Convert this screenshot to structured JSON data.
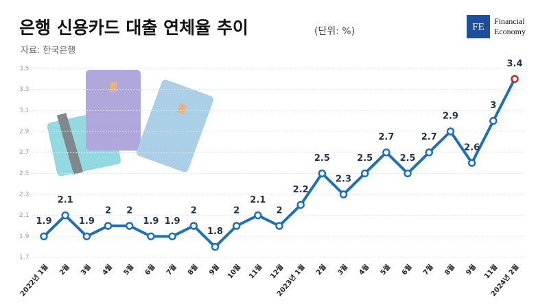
{
  "chart_data": {
    "type": "line",
    "title": "은행 신용카드 대출 연체율 추이",
    "subtitle": "(단위: %)",
    "source": "자료: 한국은행",
    "logo": {
      "mark": "FE",
      "line1": "Financial",
      "line2": "Economy"
    },
    "categories": [
      "2022년 1월",
      "2월",
      "3월",
      "4월",
      "5월",
      "6월",
      "7월",
      "8월",
      "9월",
      "10월",
      "11월",
      "12월",
      "2023년 1월",
      "2월",
      "3월",
      "4월",
      "5월",
      "6월",
      "7월",
      "8월",
      "9월",
      "11월",
      "2024년 2월"
    ],
    "series": [
      {
        "name": "연체율",
        "color": "#1f6fb8",
        "values": [
          1.9,
          2.1,
          1.9,
          2,
          2,
          1.9,
          1.9,
          2,
          1.8,
          2,
          2.1,
          2,
          2.2,
          2.5,
          2.3,
          2.5,
          2.7,
          2.5,
          2.7,
          2.9,
          2.6,
          3,
          3.4
        ]
      }
    ],
    "last_point_color": "#c0282d",
    "ylim": [
      1.7,
      3.5
    ],
    "yticks": [
      1.7,
      1.9,
      2.1,
      2.3,
      2.5,
      2.7,
      2.9,
      3.1,
      3.3,
      3.5
    ],
    "grid": true
  }
}
